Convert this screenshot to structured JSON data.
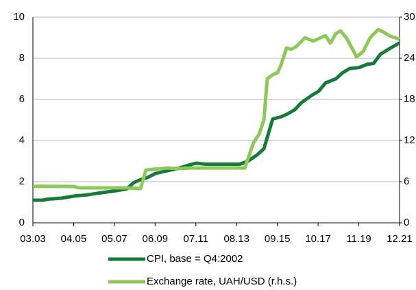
{
  "chart_data": {
    "type": "line",
    "xlim": [
      2003.1667,
      2021.9167
    ],
    "xticks": [
      {
        "value": 2003.1667,
        "label": "03.03"
      },
      {
        "value": 2005.25,
        "label": "04.05"
      },
      {
        "value": 2007.3333,
        "label": "05.07"
      },
      {
        "value": 2009.4167,
        "label": "06.09"
      },
      {
        "value": 2011.5,
        "label": "07.11"
      },
      {
        "value": 2013.5833,
        "label": "08.13"
      },
      {
        "value": 2015.6667,
        "label": "09.15"
      },
      {
        "value": 2017.75,
        "label": "10.17"
      },
      {
        "value": 2019.8333,
        "label": "11.19"
      },
      {
        "value": 2021.9167,
        "label": "12.21"
      }
    ],
    "ylim": [
      0,
      10
    ],
    "yticks": [
      0,
      2,
      4,
      6,
      8,
      10
    ],
    "y2lim": [
      0,
      30
    ],
    "y2ticks": [
      0,
      6,
      12,
      18,
      24,
      30
    ],
    "grid": true,
    "legend": "bottom",
    "series": [
      {
        "name": "CPI, base = Q4:2002",
        "color": "#17793a",
        "x": [
          2003.17,
          2003.66,
          2003.94,
          2004.64,
          2005.27,
          2005.87,
          2006.57,
          2007.34,
          2007.97,
          2008.32,
          2008.67,
          2009.02,
          2009.44,
          2009.9,
          2010.6,
          2011.12,
          2011.51,
          2012.0,
          2013.05,
          2013.75,
          2014.17,
          2014.63,
          2014.98,
          2015.43,
          2015.85,
          2016.2,
          2016.56,
          2016.91,
          2017.43,
          2017.78,
          2018.13,
          2018.66,
          2019.01,
          2019.36,
          2019.85,
          2020.24,
          2020.59,
          2020.94,
          2021.46,
          2021.92
        ],
        "values": [
          1.1,
          1.1,
          1.15,
          1.2,
          1.3,
          1.35,
          1.45,
          1.55,
          1.65,
          1.95,
          2.1,
          2.2,
          2.4,
          2.5,
          2.65,
          2.8,
          2.9,
          2.85,
          2.85,
          2.85,
          3.0,
          3.3,
          3.6,
          5.05,
          5.15,
          5.3,
          5.5,
          5.85,
          6.2,
          6.4,
          6.8,
          7.0,
          7.3,
          7.5,
          7.55,
          7.7,
          7.75,
          8.2,
          8.5,
          8.75
        ]
      },
      {
        "name": "Exchange rate, UAH/USD (r.h.s.)",
        "color": "#8dc85b",
        "axis": "y2",
        "x": [
          2003.17,
          2005.27,
          2005.52,
          2007.97,
          2008.67,
          2008.95,
          2010.07,
          2010.6,
          2011.3,
          2014.0,
          2014.45,
          2014.73,
          2014.98,
          2015.15,
          2015.43,
          2015.68,
          2015.85,
          2016.14,
          2016.38,
          2016.63,
          2017.08,
          2017.5,
          2017.89,
          2018.13,
          2018.38,
          2018.66,
          2018.9,
          2019.19,
          2019.54,
          2019.71,
          2020.06,
          2020.41,
          2020.83,
          2021.11,
          2021.46,
          2021.92
        ],
        "values": [
          5.33,
          5.3,
          5.1,
          5.1,
          5.0,
          7.7,
          8.0,
          7.9,
          8.0,
          8.0,
          11.7,
          12.9,
          15.0,
          21.0,
          21.6,
          21.9,
          23.0,
          25.5,
          25.3,
          25.7,
          27.0,
          26.5,
          27.0,
          27.3,
          26.2,
          27.6,
          28.0,
          27.0,
          25.2,
          24.2,
          25.0,
          27.0,
          28.2,
          27.8,
          27.2,
          26.8
        ]
      }
    ]
  }
}
